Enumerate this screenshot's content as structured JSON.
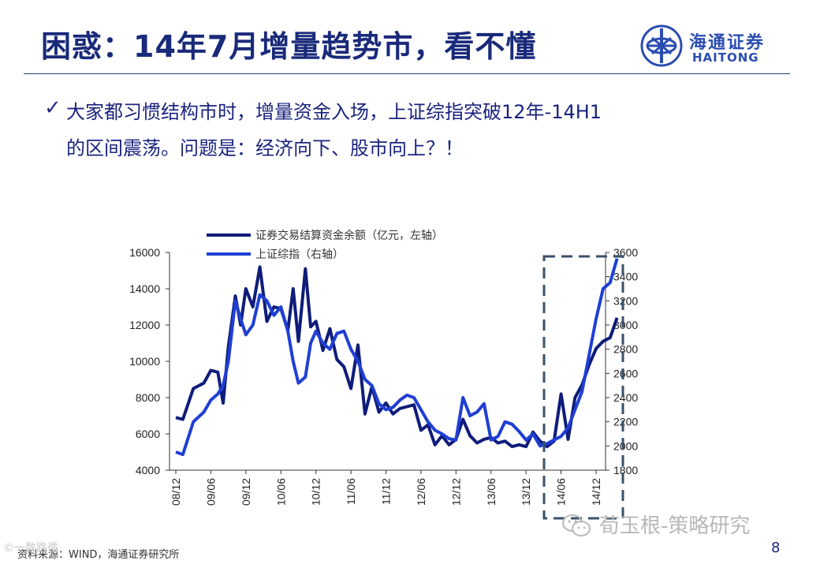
{
  "slide": {
    "title": "困惑：14年7月增量趋势市，看不懂",
    "bullet_line1": "大家都习惯结构市时，增量资金入场，上证综指突破12年-14H1",
    "bullet_line2": "的区间震荡。问题是：经济向下、股市向上？！",
    "source": "资料来源：WIND，海通证券研究所",
    "page_number": "8"
  },
  "logo": {
    "cn": "海通证券",
    "en": "HAITONG"
  },
  "watermark": {
    "left": "©一数路循",
    "right": "荀玉根-策略研究"
  },
  "colors": {
    "series1": "#0f1c7a",
    "series2": "#1f3fd4",
    "box": "#3a5068",
    "axis": "#333333",
    "title": "#1a2a7a"
  },
  "chart_data": {
    "type": "line",
    "x_tick_labels": [
      "08/12",
      "09/06",
      "09/12",
      "10/06",
      "10/12",
      "11/06",
      "11/12",
      "12/06",
      "12/12",
      "13/06",
      "13/12",
      "14/06",
      "14/12"
    ],
    "y_left": {
      "ticks": [
        "4000",
        "6000",
        "8000",
        "10000",
        "12000",
        "14000",
        "16000"
      ],
      "range": [
        4000,
        16000
      ]
    },
    "y_right": {
      "ticks": [
        "1800",
        "2000",
        "2200",
        "2400",
        "2600",
        "2800",
        "3000",
        "3200",
        "3400",
        "3600"
      ],
      "range": [
        1800,
        3600
      ]
    },
    "legend_position": "top",
    "series": [
      {
        "name": "证券交易结算资金余额（亿元，左轴）",
        "axis": "left",
        "x": [
          0,
          0.2,
          0.5,
          0.8,
          1.0,
          1.2,
          1.35,
          1.5,
          1.7,
          1.85,
          2.0,
          2.2,
          2.4,
          2.6,
          2.8,
          3.0,
          3.2,
          3.35,
          3.5,
          3.7,
          3.85,
          4.0,
          4.2,
          4.4,
          4.6,
          4.8,
          5.0,
          5.2,
          5.4,
          5.6,
          5.8,
          6.0,
          6.2,
          6.4,
          6.6,
          6.8,
          7.0,
          7.2,
          7.4,
          7.6,
          7.8,
          8.0,
          8.2,
          8.4,
          8.6,
          8.8,
          9.0,
          9.2,
          9.4,
          9.6,
          9.8,
          10.0,
          10.2,
          10.4,
          10.6,
          10.8,
          11.0,
          11.2,
          11.4,
          11.6,
          11.8,
          12.0,
          12.2,
          12.4,
          12.6
        ],
        "y": [
          6900,
          6800,
          8500,
          8800,
          9500,
          9400,
          7700,
          10800,
          13600,
          12000,
          14000,
          13000,
          15200,
          12200,
          13000,
          12900,
          11700,
          14000,
          11100,
          15100,
          11900,
          12200,
          10600,
          11800,
          10100,
          9700,
          8500,
          10900,
          7100,
          8600,
          7200,
          7700,
          7100,
          7400,
          7500,
          7600,
          6200,
          6500,
          5400,
          5900,
          5400,
          5700,
          6800,
          5900,
          5500,
          5700,
          5800,
          5500,
          5600,
          5300,
          5400,
          5300,
          6100,
          5600,
          5300,
          5600,
          8200,
          5700,
          8000,
          8700,
          9800,
          10700,
          11100,
          11300,
          12400
        ]
      },
      {
        "name": "上证综指（右轴）",
        "axis": "right",
        "x": [
          0,
          0.2,
          0.5,
          0.8,
          1.0,
          1.2,
          1.35,
          1.5,
          1.7,
          1.85,
          2.0,
          2.2,
          2.4,
          2.6,
          2.8,
          3.0,
          3.2,
          3.35,
          3.5,
          3.7,
          3.85,
          4.0,
          4.2,
          4.4,
          4.6,
          4.8,
          5.0,
          5.2,
          5.4,
          5.6,
          5.8,
          6.0,
          6.2,
          6.4,
          6.6,
          6.8,
          7.0,
          7.2,
          7.4,
          7.6,
          7.8,
          8.0,
          8.2,
          8.4,
          8.6,
          8.8,
          9.0,
          9.2,
          9.4,
          9.6,
          9.8,
          10.0,
          10.2,
          10.4,
          10.6,
          10.8,
          11.0,
          11.2,
          11.4,
          11.6,
          11.8,
          12.0,
          12.2,
          12.4,
          12.6
        ],
        "y": [
          1950,
          1930,
          2200,
          2280,
          2380,
          2430,
          2500,
          2700,
          3200,
          3050,
          2920,
          3000,
          3250,
          3200,
          3080,
          3150,
          2950,
          2700,
          2520,
          2570,
          2850,
          2950,
          2850,
          2800,
          2930,
          2950,
          2800,
          2700,
          2550,
          2500,
          2350,
          2300,
          2320,
          2380,
          2420,
          2400,
          2300,
          2200,
          2130,
          2100,
          2060,
          2050,
          2400,
          2250,
          2280,
          2350,
          2050,
          2080,
          2200,
          2180,
          2120,
          2050,
          2100,
          2000,
          2020,
          2050,
          2080,
          2150,
          2300,
          2450,
          2750,
          3050,
          3300,
          3350,
          3550
        ]
      }
    ]
  }
}
